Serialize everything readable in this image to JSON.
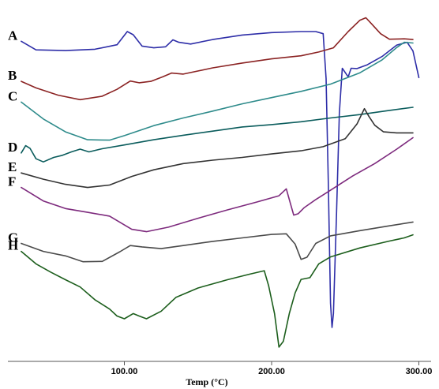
{
  "chart_data": {
    "type": "line",
    "title": "",
    "xlabel": "Temp (°C)",
    "ylabel": "",
    "xlim": [
      20,
      305
    ],
    "ylim": [
      0,
      100
    ],
    "x_ticks": [
      {
        "value": 100,
        "label": "100.00"
      },
      {
        "value": 200,
        "label": "200.00"
      },
      {
        "value": 300,
        "label": "300.00"
      }
    ],
    "grid": false,
    "legend": "none",
    "series": [
      {
        "name": "A",
        "color": "#2e2ea8",
        "points": [
          [
            30,
            90.8
          ],
          [
            40,
            88.3
          ],
          [
            60,
            88.1
          ],
          [
            80,
            88.5
          ],
          [
            95,
            89.8
          ],
          [
            102,
            93.6
          ],
          [
            106,
            92.7
          ],
          [
            112,
            89.4
          ],
          [
            120,
            88.9
          ],
          [
            128,
            89.2
          ],
          [
            133,
            91.2
          ],
          [
            137,
            90.5
          ],
          [
            145,
            90.0
          ],
          [
            160,
            91.3
          ],
          [
            180,
            92.6
          ],
          [
            200,
            93.3
          ],
          [
            220,
            93.6
          ],
          [
            230,
            93.6
          ],
          [
            235,
            93.0
          ],
          [
            237,
            80
          ],
          [
            238.5,
            50
          ],
          [
            240,
            15
          ],
          [
            241,
            8
          ],
          [
            242,
            12
          ],
          [
            244,
            40
          ],
          [
            246,
            70
          ],
          [
            248,
            83
          ],
          [
            252,
            80.5
          ],
          [
            254,
            83
          ],
          [
            258,
            82.9
          ],
          [
            265,
            84.0
          ],
          [
            275,
            86.4
          ],
          [
            285,
            89.7
          ],
          [
            292,
            90.5
          ],
          [
            296,
            88
          ],
          [
            300,
            80.3
          ]
        ]
      },
      {
        "name": "B",
        "color": "#8b2323",
        "points": [
          [
            30,
            79.2
          ],
          [
            40,
            77.3
          ],
          [
            55,
            75.2
          ],
          [
            70,
            73.9
          ],
          [
            85,
            74.9
          ],
          [
            95,
            76.9
          ],
          [
            104,
            79.3
          ],
          [
            110,
            78.8
          ],
          [
            118,
            79.2
          ],
          [
            126,
            80.5
          ],
          [
            132,
            81.6
          ],
          [
            140,
            81.3
          ],
          [
            160,
            83.1
          ],
          [
            180,
            84.5
          ],
          [
            200,
            85.7
          ],
          [
            220,
            86.6
          ],
          [
            232,
            87.7
          ],
          [
            242,
            88.9
          ],
          [
            252,
            93.6
          ],
          [
            260,
            96.9
          ],
          [
            264,
            97.6
          ],
          [
            268,
            95.8
          ],
          [
            274,
            93.0
          ],
          [
            280,
            91.4
          ],
          [
            290,
            91.5
          ],
          [
            296,
            91.3
          ]
        ]
      },
      {
        "name": "C",
        "color": "#2e8b8b",
        "points": [
          [
            30,
            73.2
          ],
          [
            45,
            68.3
          ],
          [
            60,
            64.6
          ],
          [
            75,
            62.3
          ],
          [
            90,
            62.2
          ],
          [
            100,
            63.5
          ],
          [
            120,
            66.4
          ],
          [
            140,
            68.6
          ],
          [
            160,
            70.6
          ],
          [
            180,
            72.7
          ],
          [
            200,
            74.5
          ],
          [
            220,
            76.3
          ],
          [
            240,
            78.4
          ],
          [
            260,
            81.7
          ],
          [
            275,
            85.4
          ],
          [
            285,
            89.0
          ],
          [
            290,
            90.5
          ],
          [
            296,
            90.3
          ]
        ]
      },
      {
        "name": "D",
        "color": "#0a5c5c",
        "points": [
          [
            30,
            58.5
          ],
          [
            33,
            60.6
          ],
          [
            36,
            59.8
          ],
          [
            40,
            56.8
          ],
          [
            45,
            55.9
          ],
          [
            52,
            57.2
          ],
          [
            58,
            57.8
          ],
          [
            64,
            58.8
          ],
          [
            70,
            59.6
          ],
          [
            76,
            58.8
          ],
          [
            85,
            59.7
          ],
          [
            100,
            60.8
          ],
          [
            120,
            62.3
          ],
          [
            140,
            63.6
          ],
          [
            160,
            64.8
          ],
          [
            180,
            66.0
          ],
          [
            200,
            66.7
          ],
          [
            220,
            67.5
          ],
          [
            240,
            68.6
          ],
          [
            260,
            69.6
          ],
          [
            280,
            70.8
          ],
          [
            296,
            71.7
          ]
        ]
      },
      {
        "name": "E",
        "color": "#333333",
        "points": [
          [
            30,
            52.7
          ],
          [
            45,
            50.9
          ],
          [
            60,
            49.4
          ],
          [
            75,
            48.5
          ],
          [
            90,
            49.2
          ],
          [
            105,
            51.7
          ],
          [
            120,
            53.6
          ],
          [
            140,
            55.4
          ],
          [
            160,
            56.4
          ],
          [
            180,
            57.2
          ],
          [
            200,
            58.2
          ],
          [
            220,
            59.1
          ],
          [
            235,
            60.3
          ],
          [
            250,
            62.6
          ],
          [
            258,
            66.9
          ],
          [
            263,
            71.3
          ],
          [
            266,
            69.1
          ],
          [
            270,
            66.5
          ],
          [
            276,
            64.6
          ],
          [
            285,
            64.3
          ],
          [
            296,
            64.3
          ]
        ]
      },
      {
        "name": "F",
        "color": "#7d2a7d",
        "points": [
          [
            30,
            48.5
          ],
          [
            45,
            44.6
          ],
          [
            60,
            42.4
          ],
          [
            75,
            41.3
          ],
          [
            90,
            40.2
          ],
          [
            105,
            36.4
          ],
          [
            115,
            35.7
          ],
          [
            130,
            37.0
          ],
          [
            150,
            39.6
          ],
          [
            170,
            42.0
          ],
          [
            190,
            44.3
          ],
          [
            205,
            46.1
          ],
          [
            210,
            48.1
          ],
          [
            212,
            45.0
          ],
          [
            215,
            40.5
          ],
          [
            218,
            40.9
          ],
          [
            222,
            42.6
          ],
          [
            230,
            45.0
          ],
          [
            240,
            47.7
          ],
          [
            255,
            51.8
          ],
          [
            270,
            55.4
          ],
          [
            285,
            59.6
          ],
          [
            296,
            62.9
          ]
        ]
      },
      {
        "name": "G",
        "color": "#4a4a4a",
        "points": [
          [
            30,
            32.3
          ],
          [
            45,
            30.0
          ],
          [
            60,
            28.7
          ],
          [
            72,
            27.0
          ],
          [
            85,
            27.1
          ],
          [
            97,
            29.9
          ],
          [
            104,
            31.7
          ],
          [
            112,
            31.3
          ],
          [
            125,
            30.8
          ],
          [
            140,
            31.7
          ],
          [
            160,
            32.9
          ],
          [
            180,
            33.9
          ],
          [
            200,
            34.9
          ],
          [
            210,
            35.1
          ],
          [
            216,
            32.1
          ],
          [
            220,
            27.7
          ],
          [
            224,
            28.3
          ],
          [
            230,
            32.3
          ],
          [
            240,
            34.5
          ],
          [
            260,
            36.0
          ],
          [
            280,
            37.4
          ],
          [
            296,
            38.5
          ]
        ]
      },
      {
        "name": "H",
        "color": "#1c5e1c",
        "points": [
          [
            30,
            30.0
          ],
          [
            40,
            26.4
          ],
          [
            50,
            24.0
          ],
          [
            60,
            21.8
          ],
          [
            70,
            19.7
          ],
          [
            80,
            16.0
          ],
          [
            90,
            13.3
          ],
          [
            95,
            11.3
          ],
          [
            100,
            10.5
          ],
          [
            106,
            12.0
          ],
          [
            110,
            11.3
          ],
          [
            115,
            10.5
          ],
          [
            125,
            12.7
          ],
          [
            135,
            16.7
          ],
          [
            150,
            19.4
          ],
          [
            170,
            21.8
          ],
          [
            185,
            23.4
          ],
          [
            195,
            24.4
          ],
          [
            198,
            20.0
          ],
          [
            202,
            12.0
          ],
          [
            205,
            2.3
          ],
          [
            208,
            4.0
          ],
          [
            212,
            12.0
          ],
          [
            216,
            18.0
          ],
          [
            220,
            21.9
          ],
          [
            226,
            22.4
          ],
          [
            232,
            26.4
          ],
          [
            240,
            28.4
          ],
          [
            260,
            31.0
          ],
          [
            280,
            33.0
          ],
          [
            290,
            33.9
          ],
          [
            296,
            34.8
          ]
        ]
      }
    ]
  }
}
